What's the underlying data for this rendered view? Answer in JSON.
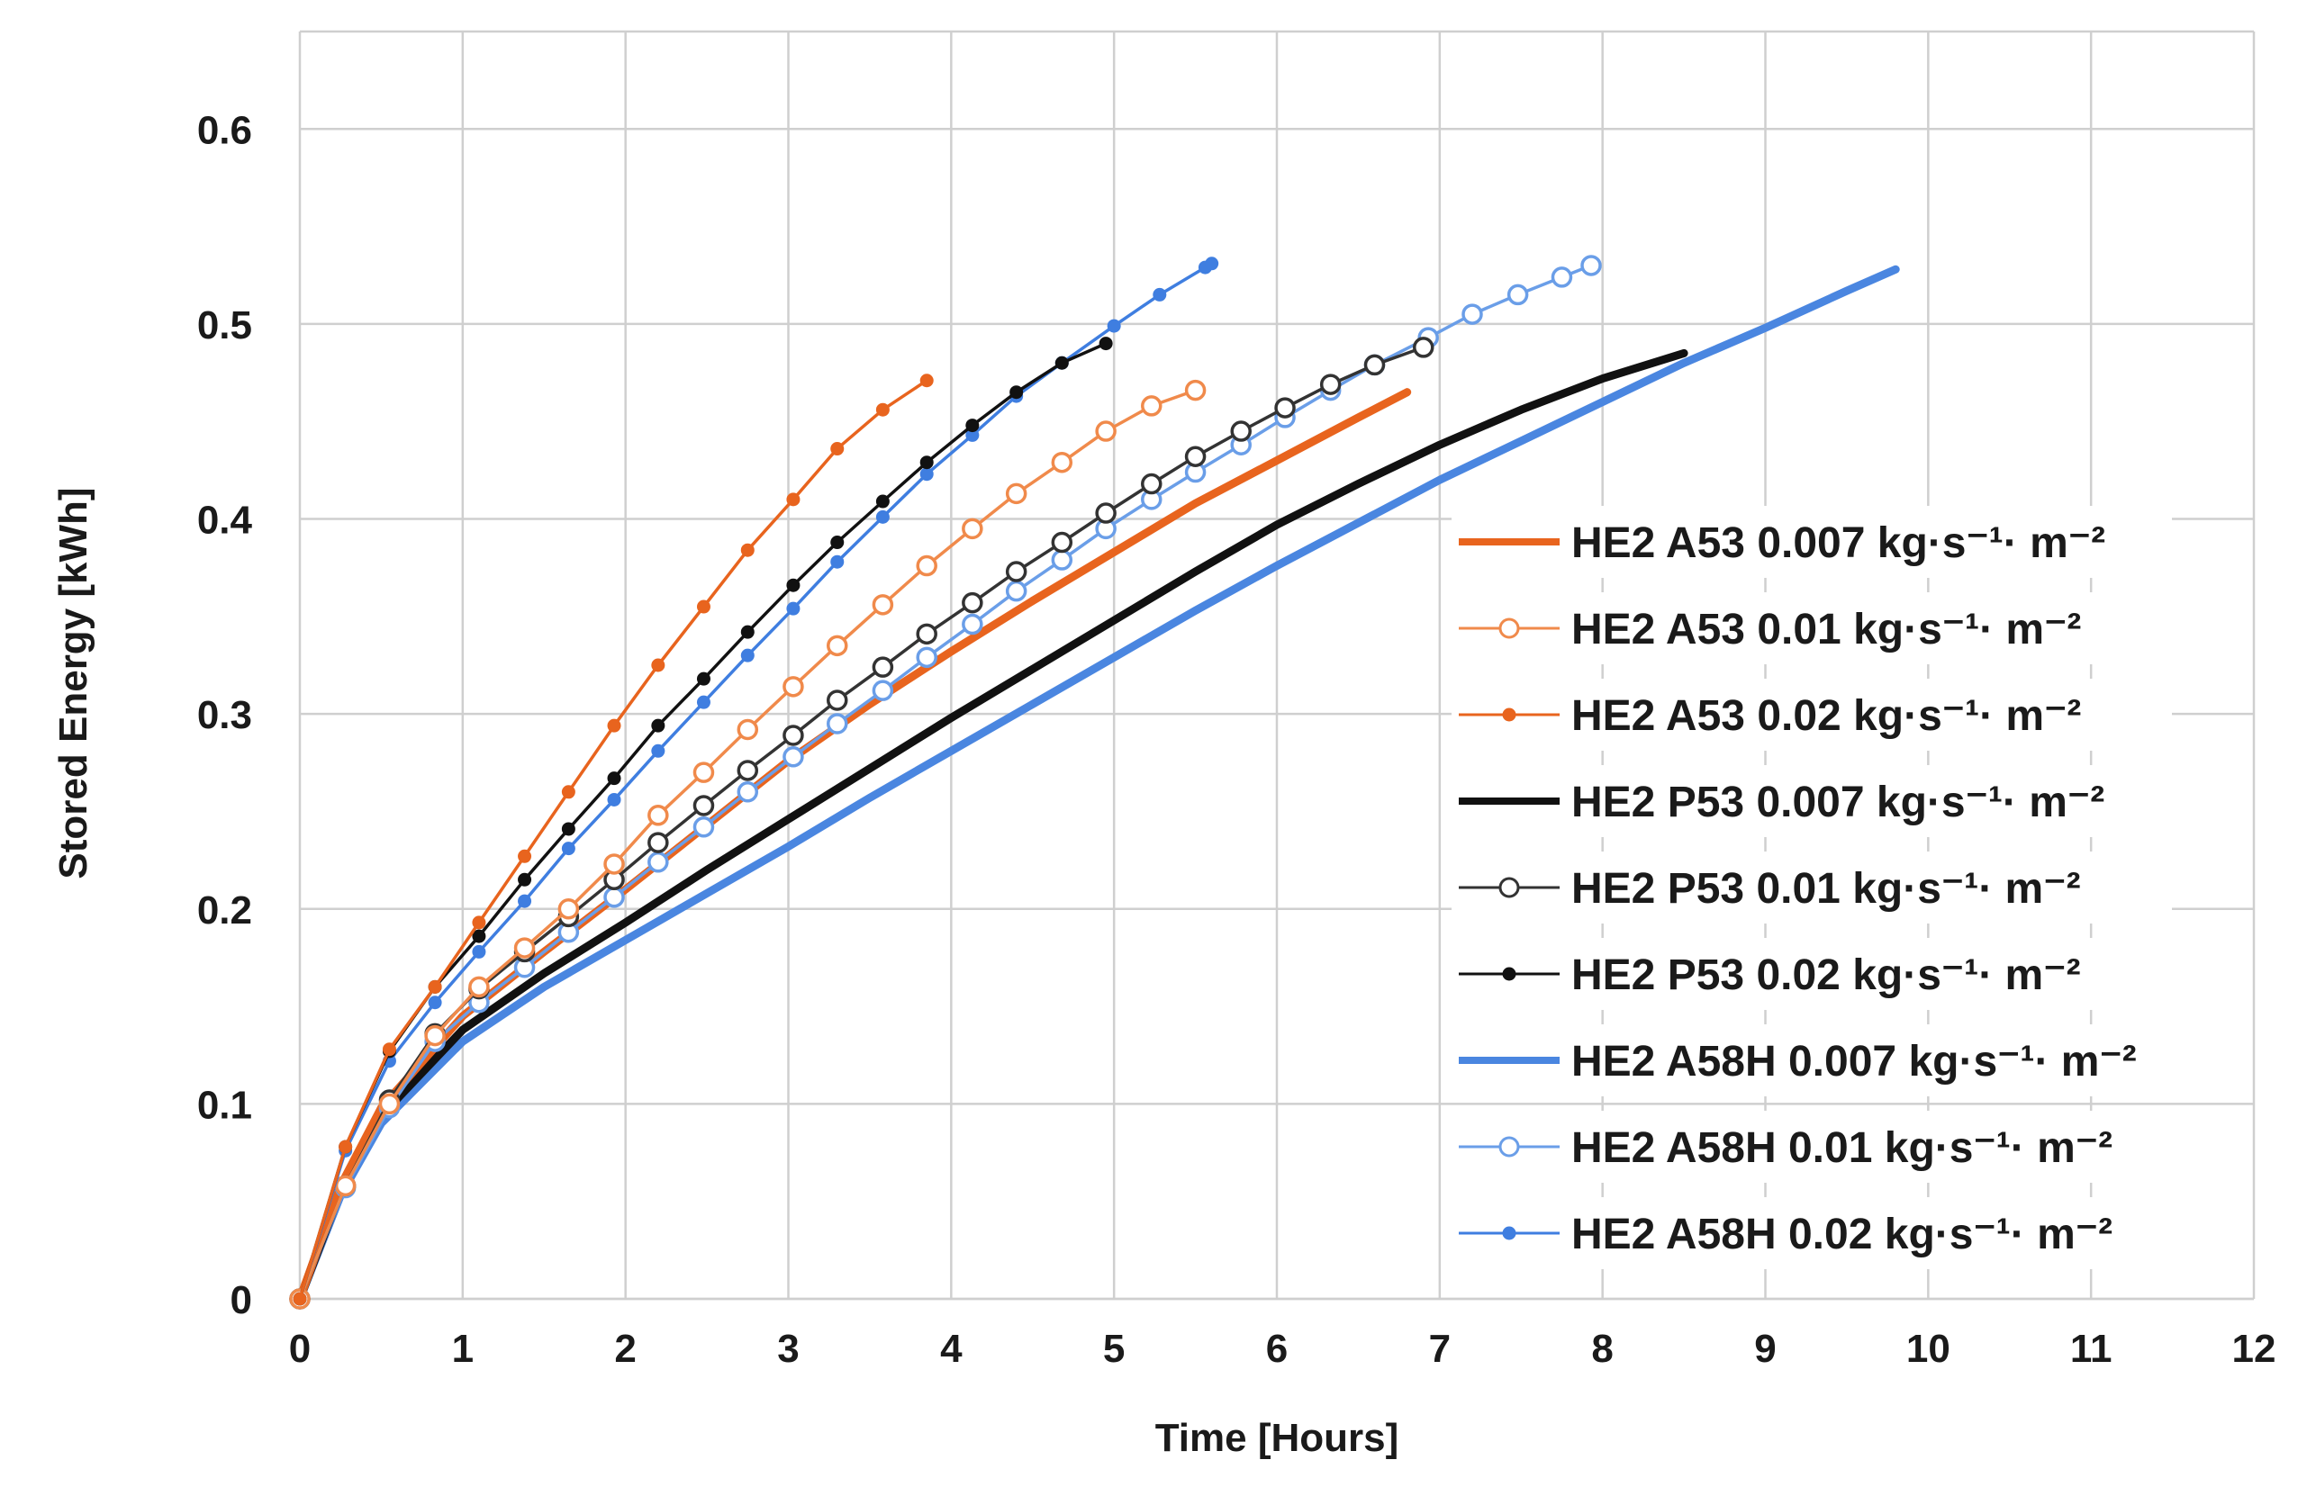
{
  "chart_data": {
    "type": "line",
    "title": "",
    "xlabel": "Time [Hours]",
    "ylabel": "Stored Energy [kWh]",
    "xlim": [
      0,
      12
    ],
    "ylim": [
      0,
      0.65
    ],
    "xticks": [
      0,
      1,
      2,
      3,
      4,
      5,
      6,
      7,
      8,
      9,
      10,
      11,
      12
    ],
    "yticks": [
      0,
      0.1,
      0.2,
      0.3,
      0.4,
      0.5,
      0.6
    ],
    "xtick_labels": [
      "0",
      "1",
      "2",
      "3",
      "4",
      "5",
      "6",
      "7",
      "8",
      "9",
      "10",
      "11",
      "12"
    ],
    "ytick_labels": [
      "0",
      "0.1",
      "0.2",
      "0.3",
      "0.4",
      "0.5",
      "0.6"
    ],
    "grid": true,
    "legend_position": "right",
    "series": [
      {
        "name": "HE2 A53 0.007 kg·s⁻¹· m⁻²",
        "color": "#e8641e",
        "marker": "none",
        "line_style": "thick",
        "x": [
          0,
          0.25,
          0.5,
          1,
          1.5,
          2,
          2.5,
          3,
          3.5,
          4,
          4.5,
          5,
          5.5,
          6,
          6.5,
          6.8
        ],
        "y": [
          0,
          0.058,
          0.098,
          0.145,
          0.178,
          0.21,
          0.243,
          0.276,
          0.305,
          0.332,
          0.358,
          0.383,
          0.408,
          0.43,
          0.452,
          0.465
        ]
      },
      {
        "name": "HE2 A53 0.01 kg·s⁻¹· m⁻²",
        "color": "#f08a4b",
        "marker": "open-circle",
        "line_style": "thin",
        "x": [
          0,
          0.28,
          0.55,
          0.83,
          1.1,
          1.38,
          1.65,
          1.93,
          2.2,
          2.48,
          2.75,
          3.03,
          3.3,
          3.58,
          3.85,
          4.13,
          4.4,
          4.68,
          4.95,
          5.23,
          5.5
        ],
        "y": [
          0,
          0.058,
          0.1,
          0.135,
          0.16,
          0.18,
          0.2,
          0.223,
          0.248,
          0.27,
          0.292,
          0.314,
          0.335,
          0.356,
          0.376,
          0.395,
          0.413,
          0.429,
          0.445,
          0.458,
          0.466
        ]
      },
      {
        "name": "HE2 A53 0.02 kg·s⁻¹· m⁻²",
        "color": "#e8641e",
        "marker": "filled-dot",
        "line_style": "thin",
        "x": [
          0,
          0.28,
          0.55,
          0.83,
          1.1,
          1.38,
          1.65,
          1.93,
          2.2,
          2.48,
          2.75,
          3.03,
          3.3,
          3.58,
          3.85
        ],
        "y": [
          0,
          0.078,
          0.128,
          0.16,
          0.193,
          0.227,
          0.26,
          0.294,
          0.325,
          0.355,
          0.384,
          0.41,
          0.436,
          0.456,
          0.471
        ]
      },
      {
        "name": "HE2 P53 0.007 kg·s⁻¹· m⁻²",
        "color": "#111111",
        "marker": "none",
        "line_style": "thick",
        "x": [
          0,
          0.25,
          0.5,
          1,
          1.5,
          2,
          2.5,
          3,
          3.5,
          4,
          4.5,
          5,
          5.5,
          6,
          6.5,
          7,
          7.5,
          8,
          8.5
        ],
        "y": [
          0,
          0.055,
          0.094,
          0.138,
          0.167,
          0.193,
          0.22,
          0.246,
          0.272,
          0.298,
          0.323,
          0.348,
          0.373,
          0.397,
          0.418,
          0.438,
          0.456,
          0.472,
          0.485
        ]
      },
      {
        "name": "HE2 P53 0.01 kg·s⁻¹· m⁻²",
        "color": "#333333",
        "marker": "open-circle",
        "line_style": "thin",
        "x": [
          0,
          0.28,
          0.55,
          0.83,
          1.1,
          1.38,
          1.65,
          1.93,
          2.2,
          2.48,
          2.75,
          3.03,
          3.3,
          3.58,
          3.85,
          4.13,
          4.4,
          4.68,
          4.95,
          5.23,
          5.5,
          5.78,
          6.05,
          6.33,
          6.6,
          6.9
        ],
        "y": [
          0,
          0.058,
          0.102,
          0.136,
          0.159,
          0.178,
          0.196,
          0.215,
          0.234,
          0.253,
          0.271,
          0.289,
          0.307,
          0.324,
          0.341,
          0.357,
          0.373,
          0.388,
          0.403,
          0.418,
          0.432,
          0.445,
          0.457,
          0.469,
          0.479,
          0.488
        ]
      },
      {
        "name": "HE2 P53 0.02 kg·s⁻¹· m⁻²",
        "color": "#111111",
        "marker": "filled-dot",
        "line_style": "thin",
        "x": [
          0,
          0.28,
          0.55,
          0.83,
          1.1,
          1.38,
          1.65,
          1.93,
          2.2,
          2.48,
          2.75,
          3.03,
          3.3,
          3.58,
          3.85,
          4.13,
          4.4,
          4.68,
          4.95
        ],
        "y": [
          0,
          0.078,
          0.127,
          0.16,
          0.186,
          0.215,
          0.241,
          0.267,
          0.294,
          0.318,
          0.342,
          0.366,
          0.388,
          0.409,
          0.429,
          0.448,
          0.465,
          0.48,
          0.49
        ]
      },
      {
        "name": "HE2 A58H 0.007 kg·s⁻¹· m⁻²",
        "color": "#4a86e0",
        "marker": "none",
        "line_style": "thick",
        "x": [
          0,
          0.25,
          0.5,
          1,
          1.5,
          2,
          2.5,
          3,
          3.5,
          4,
          4.5,
          5,
          5.5,
          6,
          6.5,
          7,
          7.5,
          8,
          8.5,
          9,
          9.5,
          9.8
        ],
        "y": [
          0,
          0.053,
          0.09,
          0.132,
          0.16,
          0.184,
          0.208,
          0.232,
          0.257,
          0.281,
          0.305,
          0.329,
          0.353,
          0.376,
          0.398,
          0.42,
          0.44,
          0.46,
          0.48,
          0.498,
          0.517,
          0.528
        ]
      },
      {
        "name": "HE2 A58H 0.01 kg·s⁻¹· m⁻²",
        "color": "#6a9ee8",
        "marker": "open-circle",
        "line_style": "thin",
        "x": [
          0,
          0.28,
          0.55,
          0.83,
          1.1,
          1.38,
          1.65,
          1.93,
          2.2,
          2.48,
          2.75,
          3.03,
          3.3,
          3.58,
          3.85,
          4.13,
          4.4,
          4.68,
          4.95,
          5.23,
          5.5,
          5.78,
          6.05,
          6.33,
          6.6,
          6.93,
          7.2,
          7.48,
          7.75,
          7.93
        ],
        "y": [
          0,
          0.057,
          0.098,
          0.132,
          0.152,
          0.17,
          0.188,
          0.206,
          0.224,
          0.242,
          0.26,
          0.278,
          0.295,
          0.312,
          0.329,
          0.346,
          0.363,
          0.379,
          0.395,
          0.41,
          0.424,
          0.438,
          0.452,
          0.466,
          0.479,
          0.493,
          0.505,
          0.515,
          0.524,
          0.53
        ]
      },
      {
        "name": "HE2 A58H 0.02 kg·s⁻¹· m⁻²",
        "color": "#3f7ee0",
        "marker": "filled-dot",
        "line_style": "thin",
        "x": [
          0,
          0.28,
          0.55,
          0.83,
          1.1,
          1.38,
          1.65,
          1.93,
          2.2,
          2.48,
          2.75,
          3.03,
          3.3,
          3.58,
          3.85,
          4.13,
          4.4,
          4.68,
          5.0,
          5.28,
          5.56,
          5.6
        ],
        "y": [
          0,
          0.076,
          0.122,
          0.152,
          0.178,
          0.204,
          0.231,
          0.256,
          0.281,
          0.306,
          0.33,
          0.354,
          0.378,
          0.401,
          0.423,
          0.443,
          0.463,
          0.48,
          0.499,
          0.515,
          0.529,
          0.531
        ]
      }
    ]
  }
}
